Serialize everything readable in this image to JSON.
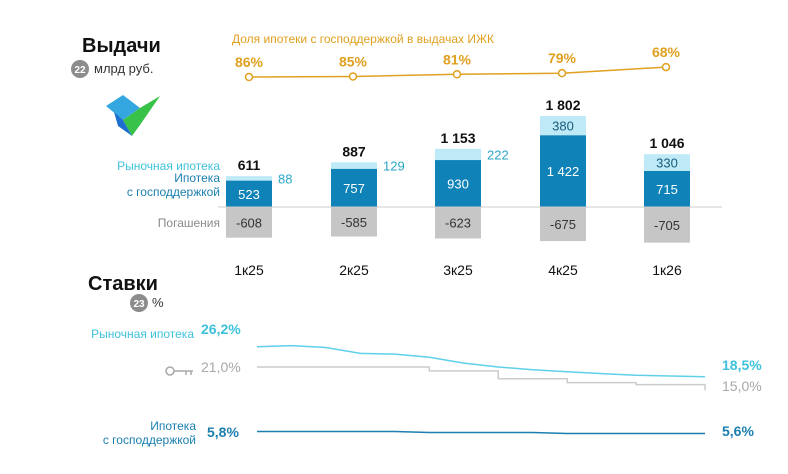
{
  "header": {
    "title": "Выдачи",
    "badge": "22",
    "unit": "млрд руб."
  },
  "share": {
    "title": "Доля ипотеки с господдержкой в выдачах ИЖК",
    "values": [
      "86%",
      "85%",
      "81%",
      "79%",
      "68%"
    ]
  },
  "legend": {
    "market": "Рыночная ипотека",
    "gov_line1": "Ипотека",
    "gov_line2": "с господдержкой",
    "repay": "Погашения"
  },
  "rates_header": {
    "title": "Ставки",
    "badge": "23",
    "unit": "%"
  },
  "rates": {
    "market_label": "Рыночная ипотека",
    "market_start": "26,2%",
    "market_end": "18,5%",
    "key_start": "21,0%",
    "key_end": "15,0%",
    "gov_line1": "Ипотека",
    "gov_line2": "с господдержкой",
    "gov_start": "5,8%",
    "gov_end": "5,6%"
  },
  "colors": {
    "market": "#bdeaf6",
    "gov": "#0f82b8",
    "repay": "#c6c6c6",
    "share": "#E0A020",
    "market_rate": "#5fd0ea",
    "key_rate": "#cccccc",
    "gov_rate": "#1b7fb0"
  },
  "chart_data": [
    {
      "type": "bar",
      "categories": [
        "1к25",
        "2к25",
        "3к25",
        "4к25",
        "1к26"
      ],
      "series": [
        {
          "name": "Ипотека с господдержкой",
          "values": [
            523,
            757,
            930,
            1422,
            715
          ]
        },
        {
          "name": "Рыночная ипотека",
          "values": [
            88,
            129,
            222,
            380,
            330
          ]
        },
        {
          "name": "Погашения",
          "values": [
            -608,
            -585,
            -623,
            -675,
            -705
          ]
        }
      ],
      "totals": [
        611,
        887,
        1153,
        1802,
        1046
      ],
      "total_labels": [
        "611",
        "887",
        "1 153",
        "1 802",
        "1 046"
      ],
      "market_labels": [
        "88",
        "129",
        "222",
        "380",
        "330"
      ],
      "gov_labels": [
        "523",
        "757",
        "930",
        "1 422",
        "715"
      ],
      "repay_labels": [
        "-608",
        "-585",
        "-623",
        "-675",
        "-705"
      ]
    },
    {
      "type": "line",
      "categories": [
        "1к25",
        "2к25",
        "3к25",
        "4к25",
        "1к26"
      ],
      "series": [
        {
          "name": "Доля ипотеки с господдержкой в выдачах ИЖК",
          "values": [
            86,
            85,
            81,
            79,
            68
          ]
        }
      ]
    },
    {
      "type": "line",
      "series": [
        {
          "name": "Рыночная ипотека",
          "values": [
            26.2,
            26.5,
            26.0,
            24.5,
            24.3,
            23.5,
            22.0,
            21.0,
            20.3,
            19.8,
            19.3,
            18.9,
            18.7,
            18.5
          ]
        },
        {
          "name": "",
          "values": [
            21.0,
            21.0,
            21.0,
            21.0,
            21.0,
            20.0,
            20.0,
            18.0,
            18.0,
            17.0,
            17.0,
            16.5,
            16.5,
            15.0
          ]
        },
        {
          "name": "Ипотека с господдержкой",
          "values": [
            5.8,
            5.8,
            5.8,
            5.8,
            5.8,
            5.7,
            5.7,
            5.7,
            5.7,
            5.6,
            5.6,
            5.6,
            5.6,
            5.6
          ]
        }
      ]
    }
  ]
}
